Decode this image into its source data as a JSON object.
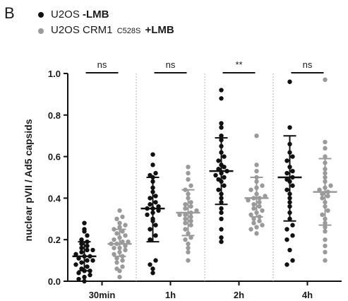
{
  "panel_label": "B",
  "legend": [
    {
      "name_plain": "U2OS ",
      "name_bold": "-LMB",
      "name_sub": "",
      "color": "#111111"
    },
    {
      "name_plain": "U2OS CRM1 ",
      "name_sub": "C528S",
      "name_bold": " +LMB",
      "color": "#9a9a9a"
    }
  ],
  "chart_data": {
    "type": "scatter",
    "ylabel": "nuclear pVII / Ad5 capsids",
    "xlabel": "",
    "ylim": [
      0.0,
      1.0
    ],
    "yticks": [
      "0.0",
      "0.2",
      "0.4",
      "0.6",
      "0.8",
      "1.0"
    ],
    "categories": [
      "30min",
      "1h",
      "2h",
      "4h"
    ],
    "significance": [
      "ns",
      "ns",
      "**",
      "ns"
    ],
    "series": [
      {
        "name": "U2OS -LMB",
        "color": "#111111",
        "summary": [
          {
            "mean": 0.12,
            "sd_low": 0.05,
            "sd_high": 0.19
          },
          {
            "mean": 0.35,
            "sd_low": 0.19,
            "sd_high": 0.5
          },
          {
            "mean": 0.53,
            "sd_low": 0.37,
            "sd_high": 0.69
          },
          {
            "mean": 0.5,
            "sd_low": 0.29,
            "sd_high": 0.7
          }
        ],
        "values": [
          [
            0.28,
            0.25,
            0.24,
            0.22,
            0.2,
            0.19,
            0.18,
            0.17,
            0.16,
            0.15,
            0.15,
            0.14,
            0.13,
            0.12,
            0.12,
            0.11,
            0.1,
            0.1,
            0.09,
            0.08,
            0.07,
            0.06,
            0.05,
            0.05,
            0.04,
            0.03,
            0.02,
            0.01,
            0.0
          ],
          [
            0.61,
            0.56,
            0.52,
            0.51,
            0.5,
            0.48,
            0.45,
            0.43,
            0.41,
            0.4,
            0.38,
            0.37,
            0.36,
            0.35,
            0.35,
            0.34,
            0.33,
            0.32,
            0.3,
            0.29,
            0.27,
            0.25,
            0.22,
            0.2,
            0.1,
            0.08,
            0.06,
            0.04
          ],
          [
            0.92,
            0.88,
            0.76,
            0.74,
            0.7,
            0.68,
            0.65,
            0.62,
            0.6,
            0.58,
            0.56,
            0.55,
            0.54,
            0.53,
            0.52,
            0.51,
            0.5,
            0.49,
            0.48,
            0.46,
            0.44,
            0.42,
            0.4,
            0.38,
            0.35,
            0.33,
            0.3,
            0.25,
            0.21,
            0.19
          ],
          [
            0.96,
            0.74,
            0.66,
            0.62,
            0.6,
            0.58,
            0.55,
            0.53,
            0.52,
            0.5,
            0.49,
            0.48,
            0.46,
            0.44,
            0.42,
            0.4,
            0.38,
            0.36,
            0.33,
            0.3,
            0.27,
            0.25,
            0.22,
            0.2,
            0.15,
            0.1,
            0.08
          ]
        ]
      },
      {
        "name": "U2OS CRM1 C528S +LMB",
        "color": "#9a9a9a",
        "summary": [
          {
            "mean": 0.18,
            "sd_low": 0.12,
            "sd_high": 0.25
          },
          {
            "mean": 0.33,
            "sd_low": 0.22,
            "sd_high": 0.44
          },
          {
            "mean": 0.4,
            "sd_low": 0.31,
            "sd_high": 0.5
          },
          {
            "mean": 0.43,
            "sd_low": 0.27,
            "sd_high": 0.59
          }
        ],
        "values": [
          [
            0.34,
            0.31,
            0.3,
            0.28,
            0.27,
            0.26,
            0.25,
            0.24,
            0.23,
            0.22,
            0.21,
            0.2,
            0.19,
            0.19,
            0.18,
            0.18,
            0.17,
            0.16,
            0.16,
            0.15,
            0.14,
            0.13,
            0.12,
            0.11,
            0.1,
            0.09,
            0.07,
            0.06,
            0.05,
            0.02
          ],
          [
            0.55,
            0.52,
            0.49,
            0.46,
            0.44,
            0.42,
            0.4,
            0.38,
            0.37,
            0.36,
            0.35,
            0.34,
            0.33,
            0.32,
            0.32,
            0.31,
            0.3,
            0.29,
            0.28,
            0.27,
            0.25,
            0.23,
            0.21,
            0.2,
            0.18,
            0.16,
            0.14,
            0.1
          ],
          [
            0.7,
            0.56,
            0.53,
            0.5,
            0.48,
            0.46,
            0.45,
            0.44,
            0.42,
            0.41,
            0.4,
            0.4,
            0.39,
            0.38,
            0.37,
            0.36,
            0.35,
            0.34,
            0.33,
            0.32,
            0.31,
            0.3,
            0.29,
            0.28,
            0.27,
            0.26,
            0.25,
            0.23
          ],
          [
            0.97,
            0.67,
            0.64,
            0.6,
            0.57,
            0.54,
            0.52,
            0.5,
            0.48,
            0.46,
            0.45,
            0.44,
            0.43,
            0.42,
            0.41,
            0.4,
            0.38,
            0.36,
            0.34,
            0.32,
            0.3,
            0.28,
            0.26,
            0.24,
            0.2,
            0.17,
            0.14,
            0.1
          ]
        ]
      }
    ]
  }
}
